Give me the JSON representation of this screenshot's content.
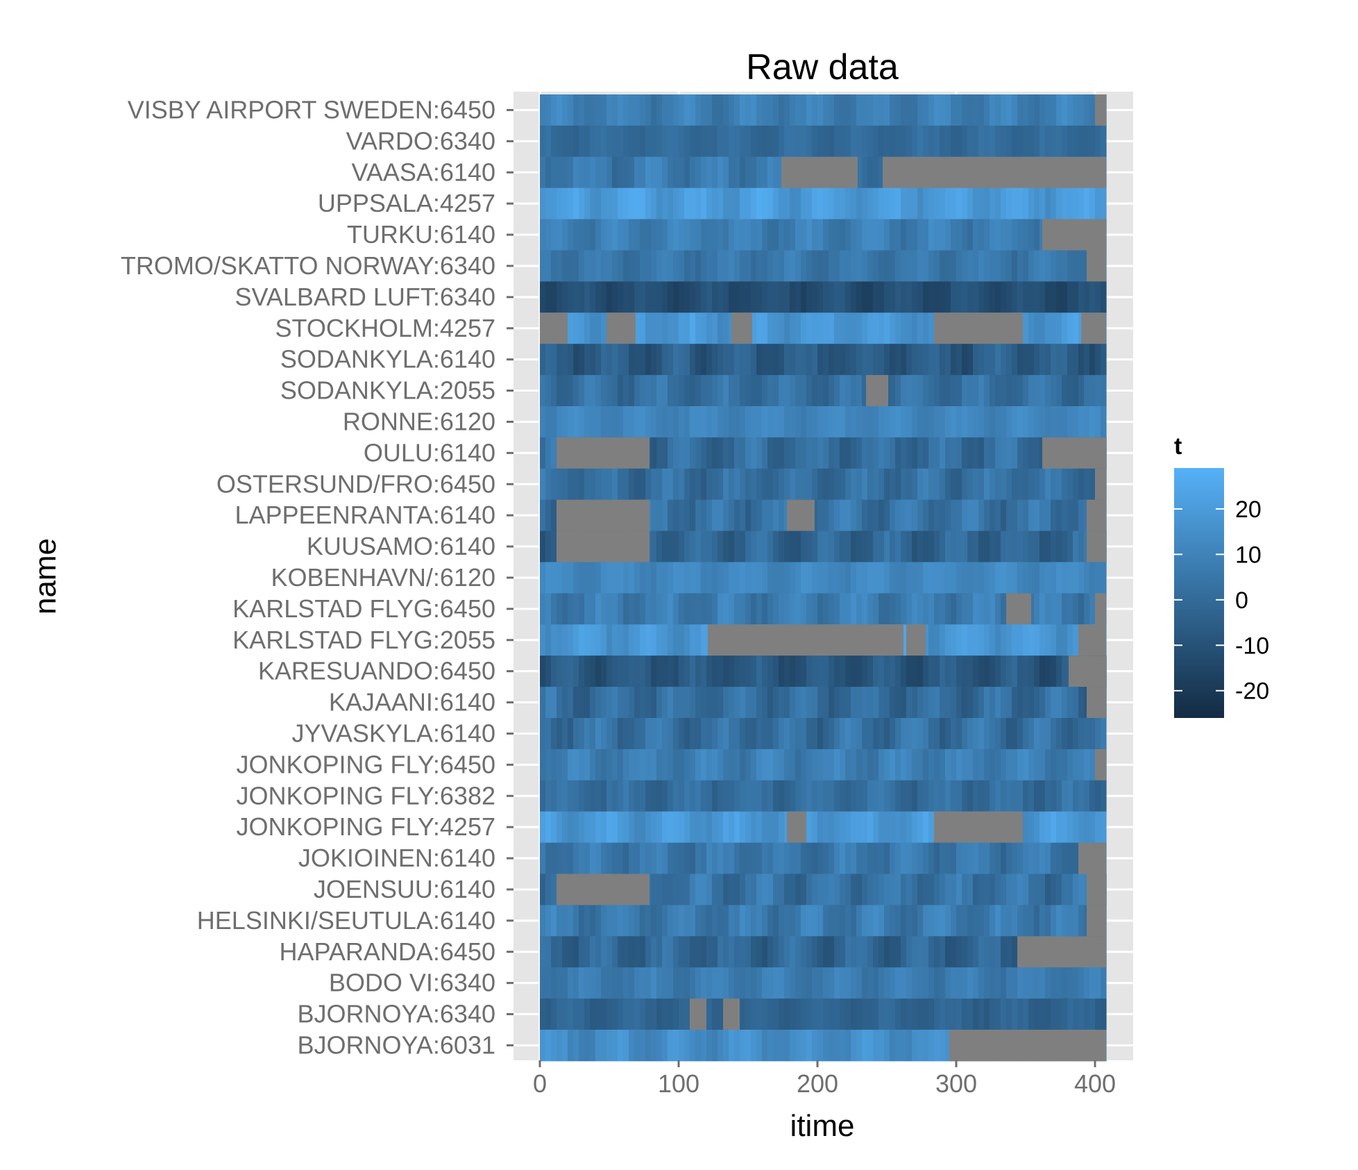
{
  "chart_data": {
    "type": "heatmap",
    "title": "Raw data",
    "xlabel": "itime",
    "ylabel": "name",
    "xlim": [
      0,
      408
    ],
    "xticks": [
      0,
      100,
      200,
      300,
      400
    ],
    "grid": true,
    "legend": {
      "title": "t",
      "placement": "right",
      "ticks": [
        20,
        10,
        0,
        -10,
        -20
      ],
      "range": [
        -26,
        29
      ],
      "low_color": "#132B43",
      "high_color": "#56B1F7"
    },
    "missing_color": "#7f7f7f",
    "panel_background": "#e5e5e5",
    "rows": [
      {
        "name": "VISBY AIRPORT SWEDEN:6450",
        "base": 8,
        "amp": 6,
        "gaps": [
          [
            400,
            408
          ]
        ]
      },
      {
        "name": "VARDO:6340",
        "base": 0,
        "amp": 4,
        "gaps": []
      },
      {
        "name": "VAASA:6140",
        "base": 6,
        "amp": 7,
        "gaps": [
          [
            174,
            229
          ],
          [
            247,
            408
          ]
        ]
      },
      {
        "name": "UPPSALA:4257",
        "base": 20,
        "amp": 6,
        "gaps": []
      },
      {
        "name": "TURKU:6140",
        "base": 8,
        "amp": 6,
        "gaps": [
          [
            362,
            372
          ],
          [
            372,
            408
          ]
        ]
      },
      {
        "name": "TROMO/SKATTO NORWAY:6340",
        "base": 5,
        "amp": 5,
        "gaps": [
          [
            394,
            408
          ]
        ]
      },
      {
        "name": "SVALBARD LUFT:6340",
        "base": -12,
        "amp": 5,
        "gaps": []
      },
      {
        "name": "STOCKHOLM:4257",
        "base": 18,
        "amp": 6,
        "gaps": [
          [
            0,
            20
          ],
          [
            48,
            69
          ],
          [
            138,
            153
          ],
          [
            284,
            348
          ],
          [
            390,
            408
          ]
        ]
      },
      {
        "name": "SODANKYLA:6140",
        "base": -6,
        "amp": 8,
        "gaps": []
      },
      {
        "name": "SODANKYLA:2055",
        "base": 2,
        "amp": 7,
        "gaps": [
          [
            235,
            251
          ]
        ]
      },
      {
        "name": "RONNE:6120",
        "base": 11,
        "amp": 4,
        "gaps": []
      },
      {
        "name": "OULU:6140",
        "base": 1,
        "amp": 8,
        "gaps": [
          [
            12,
            79
          ],
          [
            362,
            408
          ]
        ]
      },
      {
        "name": "OSTERSUND/FRO:6450",
        "base": 2,
        "amp": 7,
        "gaps": [
          [
            400,
            408
          ]
        ]
      },
      {
        "name": "LAPPEENRANTA:6140",
        "base": 3,
        "amp": 8,
        "gaps": [
          [
            12,
            79
          ],
          [
            178,
            198
          ],
          [
            394,
            408
          ]
        ]
      },
      {
        "name": "KUUSAMO:6140",
        "base": -2,
        "amp": 8,
        "gaps": [
          [
            12,
            79
          ],
          [
            394,
            408
          ]
        ]
      },
      {
        "name": "KOBENHAVN/:6120",
        "base": 12,
        "amp": 4,
        "gaps": []
      },
      {
        "name": "KARLSTAD FLYG:6450",
        "base": 7,
        "amp": 7,
        "gaps": [
          [
            336,
            354
          ],
          [
            400,
            408
          ]
        ]
      },
      {
        "name": "KARLSTAD FLYG:2055",
        "base": 18,
        "amp": 6,
        "gaps": [
          [
            121,
            262
          ],
          [
            264,
            278
          ],
          [
            388,
            408
          ]
        ]
      },
      {
        "name": "KARESUANDO:6450",
        "base": -8,
        "amp": 7,
        "gaps": [
          [
            381,
            408
          ]
        ]
      },
      {
        "name": "KAJAANI:6140",
        "base": 1,
        "amp": 8,
        "gaps": [
          [
            394,
            408
          ]
        ]
      },
      {
        "name": "JYVASKYLA:6140",
        "base": 2,
        "amp": 8,
        "gaps": []
      },
      {
        "name": "JONKOPING FLY:6450",
        "base": 8,
        "amp": 6,
        "gaps": [
          [
            400,
            408
          ]
        ]
      },
      {
        "name": "JONKOPING FLY:6382",
        "base": 1,
        "amp": 6,
        "gaps": []
      },
      {
        "name": "JONKOPING FLY:4257",
        "base": 18,
        "amp": 6,
        "gaps": [
          [
            178,
            192
          ],
          [
            284,
            348
          ]
        ]
      },
      {
        "name": "JOKIOINEN:6140",
        "base": 5,
        "amp": 7,
        "gaps": [
          [
            388,
            408
          ]
        ]
      },
      {
        "name": "JOENSUU:6140",
        "base": 3,
        "amp": 8,
        "gaps": [
          [
            12,
            79
          ],
          [
            394,
            408
          ]
        ]
      },
      {
        "name": "HELSINKI/SEUTULA:6140",
        "base": 6,
        "amp": 7,
        "gaps": [
          [
            394,
            408
          ]
        ]
      },
      {
        "name": "HAPARANDA:6450",
        "base": -2,
        "amp": 8,
        "gaps": [
          [
            344,
            408
          ]
        ]
      },
      {
        "name": "BODO VI:6340",
        "base": 7,
        "amp": 5,
        "gaps": []
      },
      {
        "name": "BJORNOYA:6340",
        "base": -3,
        "amp": 4,
        "gaps": [
          [
            108,
            120
          ],
          [
            132,
            144
          ]
        ]
      },
      {
        "name": "BJORNOYA:6031",
        "base": 14,
        "amp": 6,
        "gaps": [
          [
            295,
            408
          ]
        ]
      }
    ]
  }
}
